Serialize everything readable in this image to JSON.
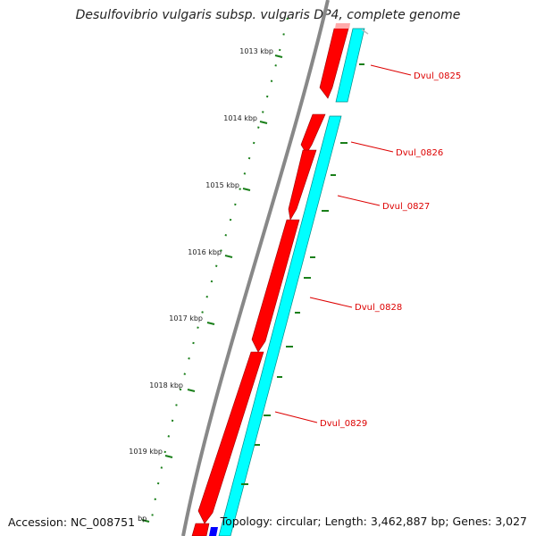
{
  "title": "Desulfovibrio vulgaris subsp. vulgaris DP4, complete genome",
  "accession_label": "Accession: NC_008751",
  "accession_unit": "bp",
  "topology_text": "Topology: circular; Length: 3,462,887 bp; Genes: 3,027",
  "ticks": [
    "1013 kbp",
    "1014 kbp",
    "1015 kbp",
    "1016 kbp",
    "1017 kbp",
    "1018 kbp",
    "1019 kbp"
  ],
  "genes": [
    "Dvul_0825",
    "Dvul_0826",
    "Dvul_0827",
    "Dvul_0828",
    "Dvul_0829"
  ],
  "colors": {
    "backbone": "#888888",
    "gene_forward": "#ff0000",
    "gene_reverse_strip": "#00ffff",
    "tick": "#1a7f1a",
    "label": "#dd0000",
    "highlight": "#0000ff"
  }
}
